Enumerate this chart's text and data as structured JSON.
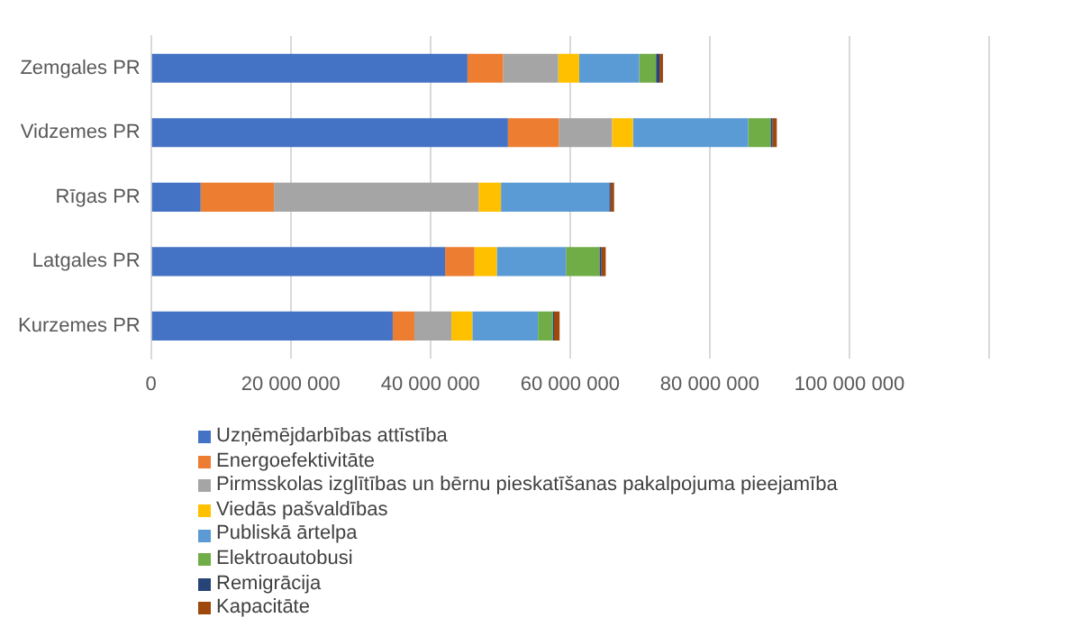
{
  "chart_data": {
    "type": "bar",
    "orientation": "horizontal",
    "stacked": true,
    "categories": [
      "Zemgales PR",
      "Vidzemes PR",
      "Rīgas PR",
      "Latgales PR",
      "Kurzemes PR"
    ],
    "series": [
      {
        "name": "Uzņēmējdarbības attīstība",
        "color": "#4472c4",
        "values": [
          45300000,
          51100000,
          7100000,
          42100000,
          34600000
        ]
      },
      {
        "name": "Energoefektivitāte",
        "color": "#ed7d31",
        "values": [
          5100000,
          7300000,
          10500000,
          4200000,
          3100000
        ]
      },
      {
        "name": "Pirmsskolas izglītības un bērnu pieskatīšanas pakalpojuma pieejamība",
        "color": "#a5a5a5",
        "values": [
          7900000,
          7600000,
          29300000,
          0,
          5300000
        ]
      },
      {
        "name": "Viedās pašvaldības",
        "color": "#ffc000",
        "values": [
          3000000,
          3000000,
          3200000,
          3200000,
          3000000
        ]
      },
      {
        "name": "Publiskā ārtelpa",
        "color": "#5b9bd5",
        "values": [
          8600000,
          16500000,
          15500000,
          9900000,
          9400000
        ]
      },
      {
        "name": "Elektroautobusi",
        "color": "#70ad47",
        "values": [
          2400000,
          3200000,
          0,
          4800000,
          2100000
        ]
      },
      {
        "name": "Remigrācija",
        "color": "#264478",
        "values": [
          500000,
          300000,
          200000,
          300000,
          200000
        ]
      },
      {
        "name": "Kapacitāte",
        "color": "#9e480e",
        "values": [
          500000,
          600000,
          500000,
          600000,
          800000
        ]
      }
    ],
    "xlim": [
      0,
      120000000
    ],
    "xticks": [
      0,
      {
        "value": 20000000,
        "label": "20 000 000"
      },
      {
        "value": 40000000,
        "label": "40 000 000"
      },
      {
        "value": 60000000,
        "label": "60 000 000"
      },
      {
        "value": 80000000,
        "label": "80 000 000"
      },
      {
        "value": 100000000,
        "label": "100 000 000"
      },
      {
        "value": 120000000,
        "label": null
      }
    ],
    "grid": "x",
    "legend": "bottom left"
  }
}
